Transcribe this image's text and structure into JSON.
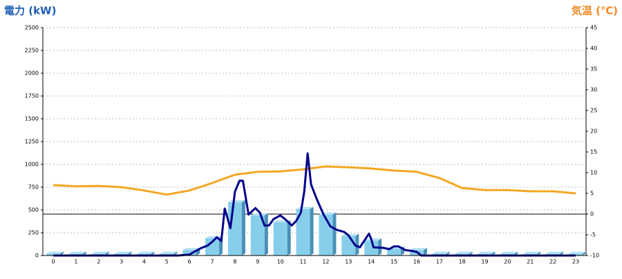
{
  "chart_data": {
    "type": "bar",
    "y_title": "電力 (kW)",
    "y2_title": "気温 (℃)",
    "categories": [
      "0",
      "1",
      "2",
      "3",
      "4",
      "5",
      "6",
      "7",
      "8",
      "9",
      "10",
      "11",
      "12",
      "13",
      "14",
      "15",
      "16",
      "17",
      "18",
      "19",
      "20",
      "21",
      "22",
      "23"
    ],
    "ylim": [
      0,
      2500
    ],
    "yticks": [
      0,
      250,
      500,
      750,
      1000,
      1250,
      1500,
      1750,
      2000,
      2250,
      2500
    ],
    "y2lim": [
      -10,
      45
    ],
    "y2ticks": [
      -10,
      -5,
      0,
      5,
      10,
      15,
      20,
      25,
      30,
      35,
      40,
      45
    ],
    "y2_zero_line": 0,
    "grid": true,
    "series": [
      {
        "type": "bar",
        "color": "#87ceeb",
        "values": [
          20,
          20,
          20,
          20,
          20,
          20,
          60,
          190,
          585,
          440,
          365,
          510,
          450,
          215,
          165,
          75,
          60,
          20,
          20,
          20,
          20,
          20,
          20,
          20
        ]
      },
      {
        "type": "line",
        "axis": "y2",
        "color": "#f5a623",
        "values": [
          7.0,
          6.7,
          6.8,
          6.5,
          5.7,
          4.7,
          5.7,
          7.5,
          9.5,
          10.2,
          10.3,
          10.8,
          11.5,
          11.3,
          11.0,
          10.5,
          10.2,
          8.7,
          6.3,
          5.8,
          5.8,
          5.5,
          5.5,
          5.0
        ]
      },
      {
        "type": "line",
        "color": "#00008b",
        "x": [
          0,
          5.5,
          6.0,
          6.2,
          6.5,
          6.8,
          7.0,
          7.2,
          7.4,
          7.55,
          7.8,
          8.0,
          8.2,
          8.35,
          8.6,
          8.9,
          9.1,
          9.3,
          9.5,
          9.7,
          10.0,
          10.2,
          10.5,
          10.7,
          10.9,
          11.05,
          11.2,
          11.35,
          11.6,
          11.9,
          12.2,
          12.5,
          12.8,
          13.0,
          13.3,
          13.5,
          13.9,
          14.0,
          14.1,
          14.5,
          14.8,
          15.0,
          15.2,
          15.5,
          15.8,
          16.0,
          16.2,
          23.0
        ],
        "values": [
          0,
          0,
          10,
          40,
          80,
          110,
          150,
          200,
          160,
          515,
          300,
          700,
          820,
          820,
          450,
          520,
          470,
          330,
          330,
          400,
          440,
          400,
          330,
          380,
          470,
          700,
          1120,
          780,
          620,
          450,
          320,
          280,
          260,
          220,
          110,
          90,
          240,
          180,
          90,
          85,
          70,
          100,
          100,
          60,
          50,
          40,
          0,
          0
        ]
      }
    ]
  }
}
